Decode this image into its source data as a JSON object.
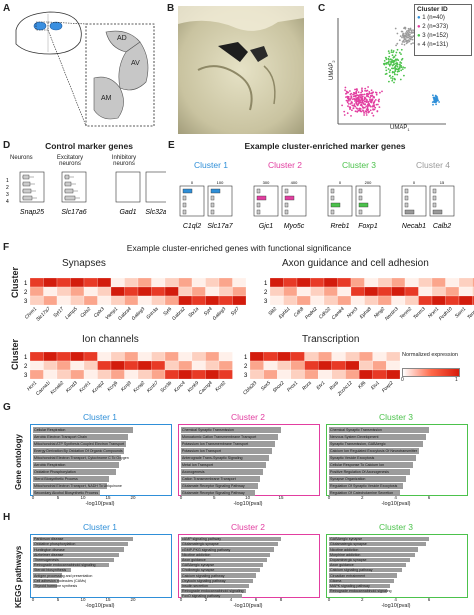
{
  "panels": {
    "A": {
      "label": "A",
      "regions": [
        "AD",
        "AV",
        "AM"
      ]
    },
    "B": {
      "label": "B"
    },
    "C": {
      "label": "C",
      "legend_title": "Cluster ID",
      "legend_items": [
        {
          "text": "1 (n=40)",
          "color": "#2f8fd8"
        },
        {
          "text": "2 (n=373)",
          "color": "#e23ea0"
        },
        {
          "text": "3 (n=152)",
          "color": "#4cc24c"
        },
        {
          "text": "4 (n=131)",
          "color": "#9a9a9a"
        }
      ],
      "xlabel": "UMAP",
      "xsub": "1",
      "ylabel": "UMAP",
      "ysub": "2"
    },
    "D": {
      "label": "D",
      "title": "Control marker genes",
      "groups": [
        "Neurons",
        "Excitatory neurons",
        "Inhibitory neurons"
      ],
      "genes": [
        "Snap25",
        "Slc17a6",
        "Gad1",
        "Slc32a1"
      ],
      "ticks_top": [
        "0",
        "6000",
        "600",
        "0"
      ],
      "cluster_rows": [
        "1",
        "2",
        "3",
        "4"
      ]
    },
    "E": {
      "label": "E",
      "title": "Example cluster-enriched marker genes",
      "clusters": [
        {
          "name": "Cluster 1",
          "color": "#2f8fd8",
          "genes": [
            "C1ql2",
            "Slc17a7"
          ],
          "ticks": [
            "0",
            "100"
          ]
        },
        {
          "name": "Cluster 2",
          "color": "#e23ea0",
          "genes": [
            "Gjc1",
            "Myo5c"
          ],
          "ticks": [
            "300",
            "400"
          ]
        },
        {
          "name": "Cluster 3",
          "color": "#4cc24c",
          "genes": [
            "Rreb1",
            "Foxp1"
          ],
          "ticks": [
            "0",
            "200"
          ]
        },
        {
          "name": "Cluster 4",
          "color": "#9a9a9a",
          "genes": [
            "Necab1",
            "Calb2"
          ],
          "ticks": [
            "0",
            "15"
          ]
        }
      ]
    },
    "F": {
      "label": "F",
      "title": "Example cluster-enriched genes with functional significance",
      "ylabel": "Cluster",
      "heatmaps": [
        {
          "title": "Synapses",
          "genes": [
            "Chrm1",
            "Slc17a7",
            "Syt17",
            "Lamp5",
            "Cplx2",
            "Cplx3",
            "Vamp1",
            "Gabra4",
            "Gabrg3",
            "Grin3a",
            "Syt6",
            "Gabra2",
            "Stx1a",
            "Syt4",
            "Gabrg3",
            "Syt7"
          ]
        },
        {
          "title": "Axon guidance and cell adhesion",
          "genes": [
            "Slit2",
            "Ephb1",
            "Cdh8",
            "Podxl2",
            "Cdh22",
            "Camk4",
            "Nrxn3",
            "Epha8",
            "Ntng2",
            "Nectin3",
            "Tenm2",
            "Tenm3",
            "Nrxn1",
            "Pcdh10",
            "Sorn1",
            "Tenm1"
          ]
        },
        {
          "title": "Ion channels",
          "genes": [
            "Hcn1",
            "Cacna1i",
            "Kcnab2",
            "Kcnd3",
            "Kcnh1",
            "Kcnip2",
            "Kcnj6",
            "Kcnj9",
            "Kcnq2",
            "Kcnh7",
            "Scn3b",
            "Kcnc4",
            "Kcnk9",
            "Cacng4",
            "Kcnt2"
          ]
        },
        {
          "title": "Transcription",
          "genes": [
            "Cbfa2t3",
            "Sox5",
            "Shox2",
            "Prox1",
            "Rora",
            "Etv1",
            "Rorb",
            "Zcchc12",
            "Klf6",
            "Etv1",
            "Foxp2"
          ]
        }
      ],
      "legend_title": "Normalized expression",
      "legend_min": "0",
      "legend_max": "1",
      "rows": [
        "1",
        "2",
        "3"
      ]
    },
    "G": {
      "label": "G",
      "ylabel": "Gene ontology",
      "xlabel": "-log10(pval)",
      "clusters": [
        {
          "name": "Cluster 1",
          "color": "#2f8fd8",
          "ticks": [
            "0",
            "5",
            "10",
            "15",
            "20"
          ],
          "terms": [
            "Cellular Respiration",
            "Aerobic Electron Transport Chain",
            "Mitochondrial ATP Synthesis Coupled Electron Transport",
            "Energy Derivation By Oxidation Of Organic Compounds",
            "Mitochondrial Electron Transport, Cytochrome C To Oxygen",
            "Aerobic Respiration",
            "Oxidative Phosphorylation",
            "Sterol Biosynthetic Process",
            "Mitochondrial Electron Transport, NADH To Ubiquinone",
            "Secondary Alcohol Biosynthetic Process"
          ],
          "values": [
            21,
            20,
            19.5,
            19,
            18.5,
            18,
            17.5,
            16,
            15.5,
            14
          ]
        },
        {
          "name": "Cluster 2",
          "color": "#e23ea0",
          "ticks": [
            "0",
            "5",
            "10",
            "15"
          ],
          "terms": [
            "Chemical Synaptic Transmission",
            "Monoatomic Cation Transmembrane Transport",
            "Potassium Ion Transmembrane Transport",
            "Potassium Ion Transport",
            "Anterograde Trans-Synaptic Signaling",
            "Metal Ion Transport",
            "Axonogenesis",
            "Cation Transmembrane Transport",
            "Glutamate Receptor Signaling Pathway",
            "Glutamate Receptor Signaling Pathway"
          ],
          "values": [
            17,
            16.5,
            16,
            15.5,
            15,
            14.5,
            14,
            13.5,
            13,
            12.5
          ]
        },
        {
          "name": "Cluster 3",
          "color": "#4cc24c",
          "ticks": [
            "0",
            "2",
            "4",
            "6"
          ],
          "terms": [
            "Chemical Synaptic Transmission",
            "Nervous System Development",
            "Synaptic Transmission, GABAergic",
            "Calcium Ion Regulated Exocytosis Of Neurotransmitter",
            "Synaptic Vesicle Exocytosis",
            "Cellular Response To Calcium Ion",
            "Positive Regulation Of Axonogenesis",
            "Synapse Organization",
            "Regulation Of Synaptic Vesicle Exocytosis",
            "Regulation Of Catecholamine Secretion"
          ],
          "values": [
            6.2,
            6.0,
            5.8,
            5.6,
            5.4,
            5.2,
            5.0,
            4.8,
            4.6,
            4.4
          ]
        }
      ]
    },
    "H": {
      "label": "H",
      "ylabel": "KEGG pathways",
      "xlabel": "-log10(pval)",
      "clusters": [
        {
          "name": "Cluster 1",
          "color": "#2f8fd8",
          "ticks": [
            "0",
            "5",
            "10",
            "15",
            "20"
          ],
          "terms": [
            "Parkinson disease",
            "Oxidative phosphorylation",
            "Huntington disease",
            "Alzheimer disease",
            "Thermogenesis",
            "Retrograde endocannabinoid signaling",
            "Steroid biosynthesis",
            "Antigen processing and presentation",
            "Cell adhesion molecules (CAMs)",
            "Thyroid hormone synthesis"
          ],
          "values": [
            21,
            20,
            19,
            18,
            17,
            16,
            8,
            6,
            5.5,
            5
          ]
        },
        {
          "name": "Cluster 2",
          "color": "#e23ea0",
          "ticks": [
            "0",
            "2",
            "4",
            "6",
            "8"
          ],
          "terms": [
            "cAMP signaling pathway",
            "Glutamatergic synapse",
            "cGMP-PKG signaling pathway",
            "Nicotine addiction",
            "Axon guidance",
            "GABAergic synapse",
            "Cholinergic synapse",
            "Calcium signaling pathway",
            "Oxytocin signaling pathway",
            "Insulin secretion",
            "Retrograde endocannabinoid signaling",
            "FoxO signaling pathway"
          ],
          "values": [
            8.5,
            8.2,
            7.9,
            7.6,
            7.3,
            7.0,
            6.7,
            6.4,
            6.1,
            5.8,
            5.5,
            5.2
          ]
        },
        {
          "name": "Cluster 3",
          "color": "#4cc24c",
          "ticks": [
            "0",
            "2",
            "4",
            "6"
          ],
          "terms": [
            "GABAergic synapse",
            "Glutamatergic synapse",
            "Nicotine addiction",
            "Morphine addiction",
            "Dopaminergic synapse",
            "Axon guidance",
            "Calcium signaling pathway",
            "Circadian entrainment",
            "Glioma",
            "MAPK signaling pathway",
            "Retrograde endocannabinoid signaling"
          ],
          "values": [
            6.2,
            6.0,
            5.5,
            5.3,
            5.0,
            4.8,
            4.5,
            4.2,
            4.0,
            3.8,
            3.6
          ]
        }
      ]
    }
  }
}
